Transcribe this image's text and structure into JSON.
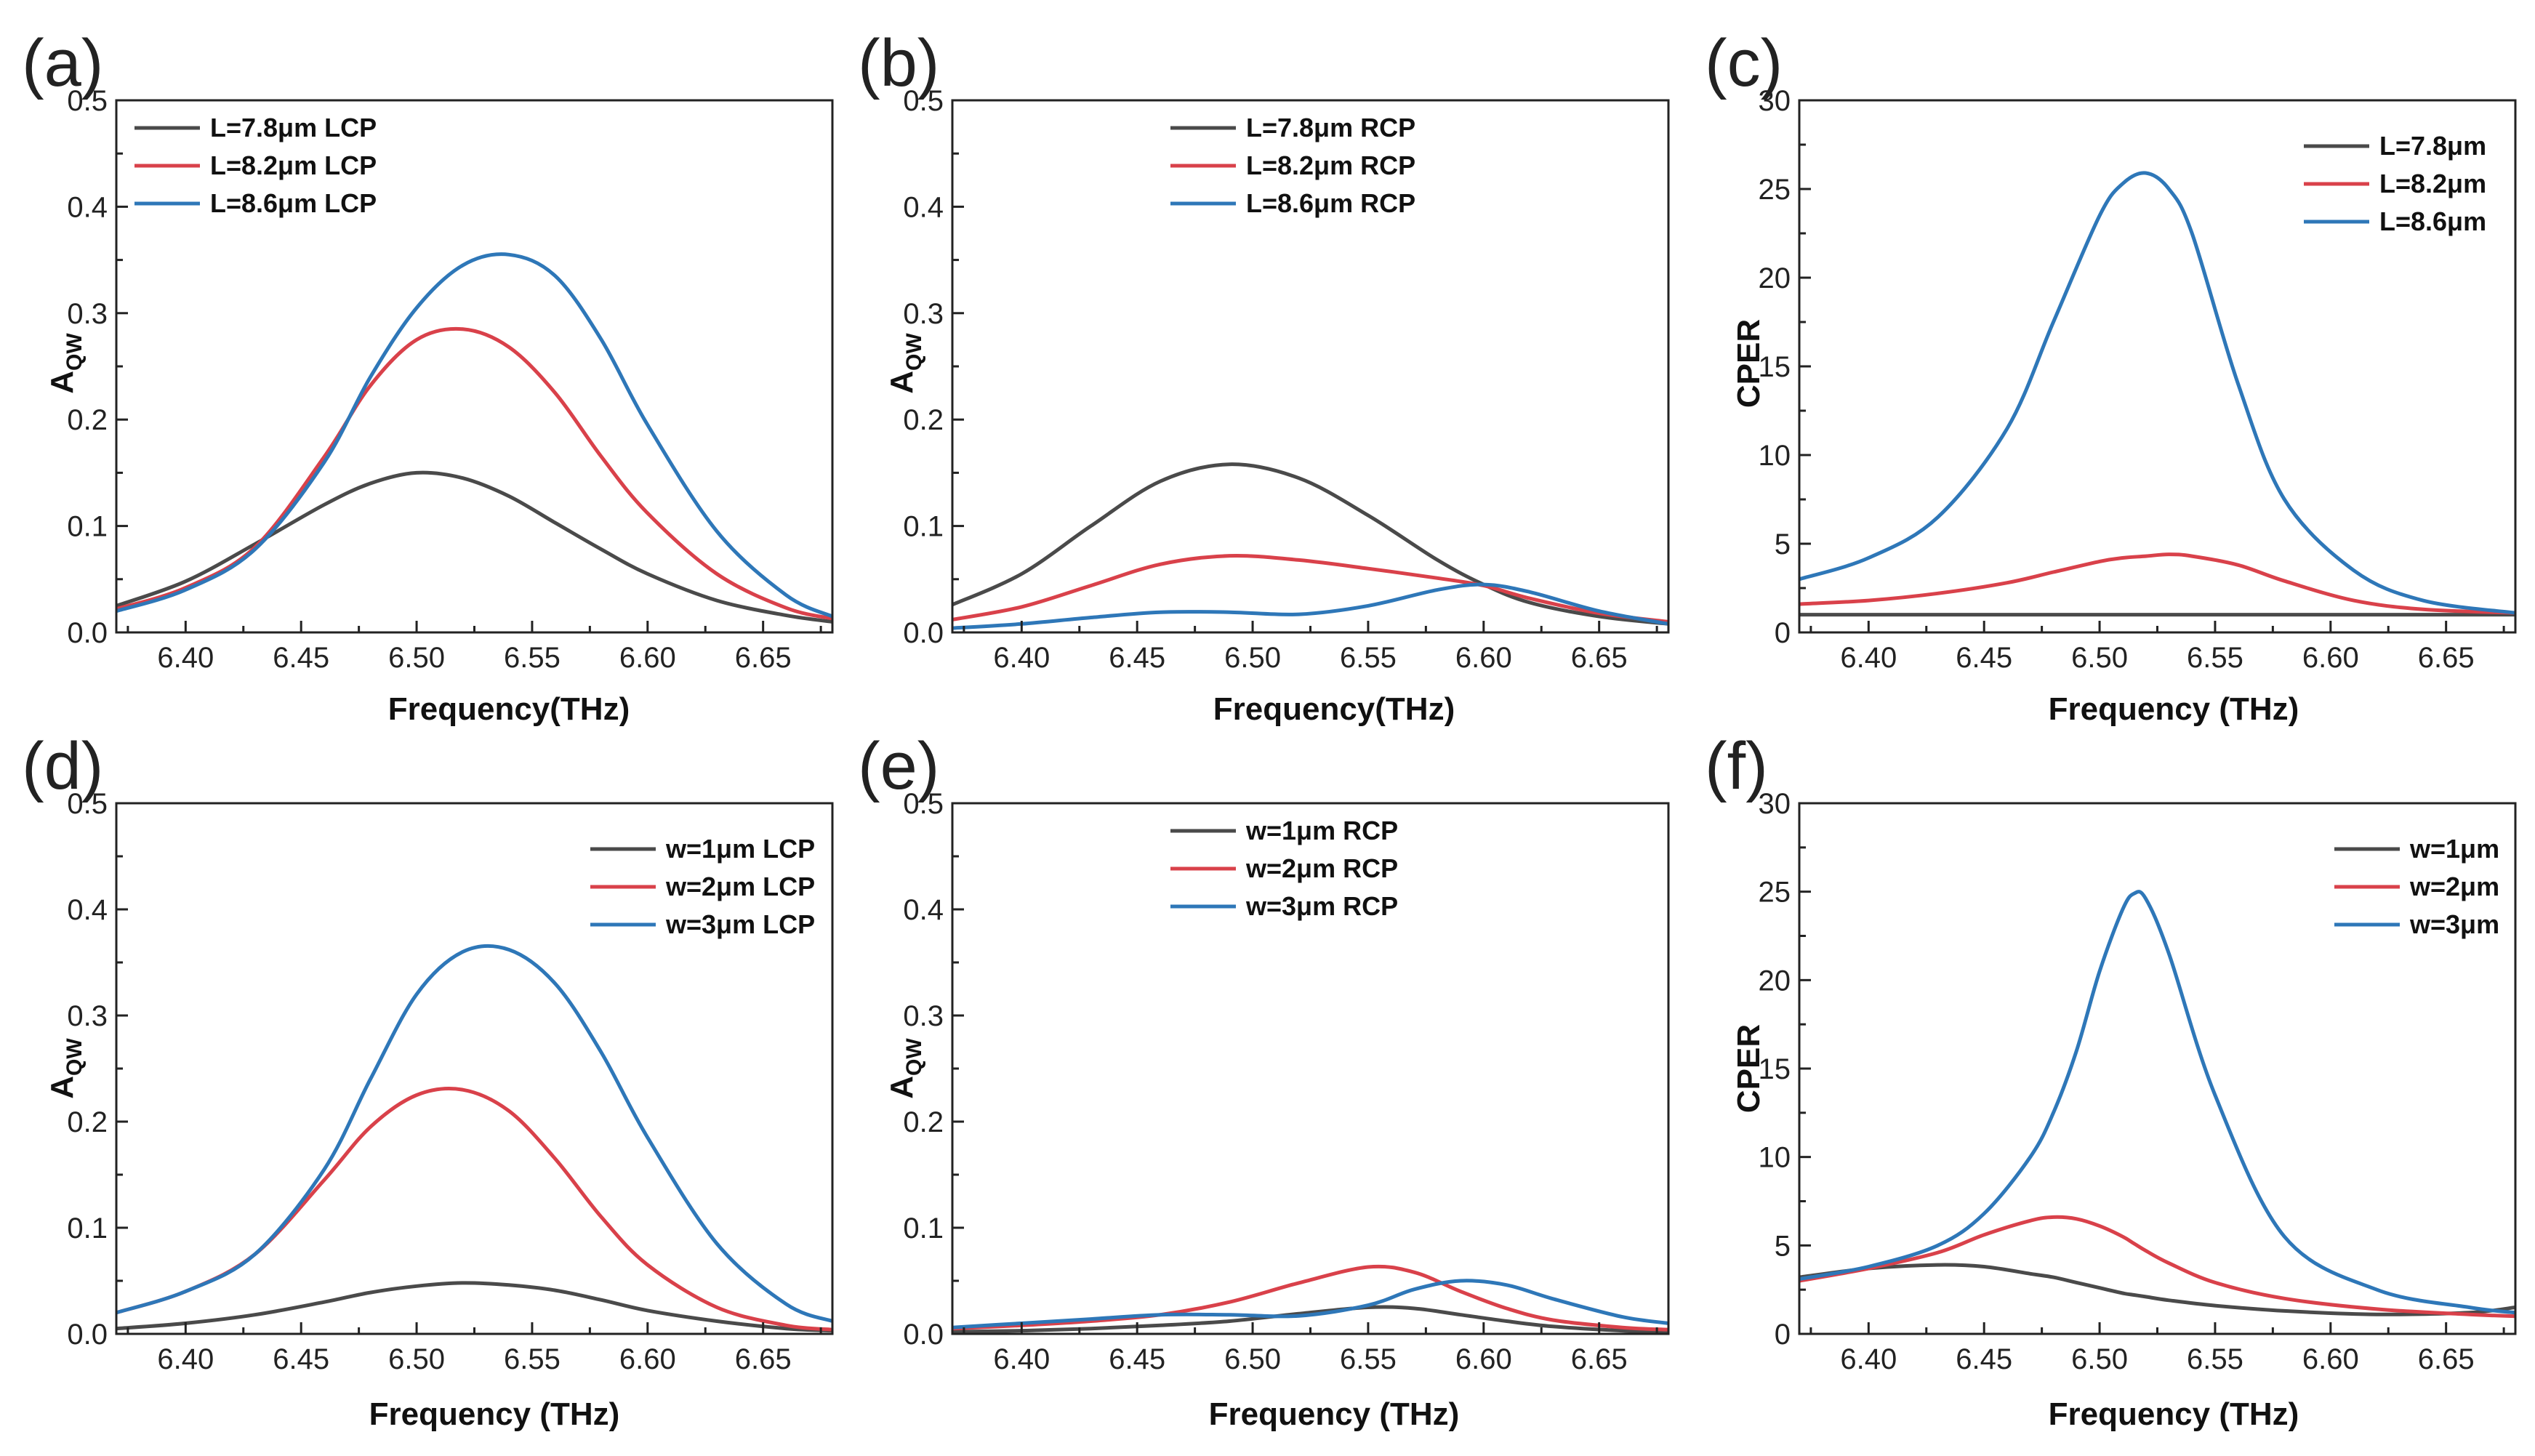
{
  "colors": {
    "black": "#4a4a4a",
    "red": "#d9414a",
    "blue": "#2e77b8"
  },
  "chart_data": [
    {
      "panel": "(a)",
      "type": "line",
      "xlabel": "Frequency(THz)",
      "ylabel": "A",
      "ylabel_sub": "QW",
      "xlim": [
        6.37,
        6.68
      ],
      "ylim": [
        0,
        0.5
      ],
      "xticks": [
        "6.40",
        "6.45",
        "6.50",
        "6.55",
        "6.60",
        "6.65"
      ],
      "yticks": [
        "0.0",
        "0.1",
        "0.2",
        "0.3",
        "0.4",
        "0.5"
      ],
      "legend": "top-left",
      "x": [
        6.37,
        6.4,
        6.43,
        6.46,
        6.48,
        6.5,
        6.52,
        6.54,
        6.56,
        6.58,
        6.6,
        6.63,
        6.66,
        6.68
      ],
      "series": [
        {
          "name": "L=7.8μm LCP",
          "color": "black",
          "values": [
            0.025,
            0.048,
            0.083,
            0.12,
            0.14,
            0.15,
            0.145,
            0.128,
            0.103,
            0.078,
            0.055,
            0.03,
            0.016,
            0.01
          ]
        },
        {
          "name": "L=8.2μm LCP",
          "color": "red",
          "values": [
            0.022,
            0.042,
            0.08,
            0.165,
            0.232,
            0.275,
            0.285,
            0.268,
            0.225,
            0.165,
            0.112,
            0.055,
            0.023,
            0.013
          ]
        },
        {
          "name": "L=8.6μm LCP",
          "color": "blue",
          "values": [
            0.02,
            0.04,
            0.078,
            0.16,
            0.24,
            0.305,
            0.345,
            0.355,
            0.335,
            0.275,
            0.195,
            0.095,
            0.035,
            0.015
          ]
        }
      ]
    },
    {
      "panel": "(b)",
      "type": "line",
      "xlabel": "Frequency(THz)",
      "ylabel": "A",
      "ylabel_sub": "QW",
      "xlim": [
        6.37,
        6.68
      ],
      "ylim": [
        0,
        0.5
      ],
      "xticks": [
        "6.40",
        "6.45",
        "6.50",
        "6.55",
        "6.60",
        "6.65"
      ],
      "yticks": [
        "0.0",
        "0.1",
        "0.2",
        "0.3",
        "0.4",
        "0.5"
      ],
      "legend": "top-center",
      "x": [
        6.37,
        6.4,
        6.43,
        6.46,
        6.49,
        6.52,
        6.55,
        6.58,
        6.6,
        6.62,
        6.65,
        6.68
      ],
      "series": [
        {
          "name": "L=7.8μm RCP",
          "color": "black",
          "values": [
            0.026,
            0.055,
            0.1,
            0.142,
            0.158,
            0.145,
            0.11,
            0.068,
            0.045,
            0.028,
            0.015,
            0.008
          ]
        },
        {
          "name": "L=8.2μm RCP",
          "color": "red",
          "values": [
            0.012,
            0.024,
            0.044,
            0.064,
            0.072,
            0.068,
            0.06,
            0.051,
            0.044,
            0.032,
            0.018,
            0.01
          ]
        },
        {
          "name": "L=8.6μm RCP",
          "color": "blue",
          "values": [
            0.004,
            0.008,
            0.014,
            0.019,
            0.019,
            0.017,
            0.025,
            0.04,
            0.045,
            0.038,
            0.02,
            0.008
          ]
        }
      ]
    },
    {
      "panel": "(c)",
      "type": "line",
      "xlabel": "Frequency (THz)",
      "ylabel": "CPER",
      "ylabel_sub": "",
      "xlim": [
        6.37,
        6.68
      ],
      "ylim": [
        0,
        30
      ],
      "xticks": [
        "6.40",
        "6.45",
        "6.50",
        "6.55",
        "6.60",
        "6.65"
      ],
      "yticks": [
        "0",
        "5",
        "10",
        "15",
        "20",
        "25",
        "30"
      ],
      "legend": "top-right",
      "x": [
        6.37,
        6.4,
        6.43,
        6.46,
        6.48,
        6.5,
        6.51,
        6.52,
        6.53,
        6.54,
        6.56,
        6.58,
        6.61,
        6.64,
        6.68
      ],
      "series": [
        {
          "name": "L=7.8μm",
          "color": "black",
          "values": [
            1.0,
            1.0,
            1.0,
            1.0,
            1.0,
            1.0,
            1.0,
            1.0,
            1.0,
            1.0,
            1.0,
            1.0,
            1.0,
            1.0,
            1.0
          ]
        },
        {
          "name": "L=8.2μm",
          "color": "red",
          "values": [
            1.6,
            1.8,
            2.2,
            2.8,
            3.4,
            4.0,
            4.2,
            4.3,
            4.4,
            4.3,
            3.8,
            2.9,
            1.8,
            1.3,
            1.1
          ]
        },
        {
          "name": "L=8.6μm",
          "color": "blue",
          "values": [
            3.0,
            4.2,
            6.5,
            11.5,
            17.5,
            23.5,
            25.3,
            25.9,
            25.0,
            22.5,
            14.0,
            7.5,
            3.5,
            1.8,
            1.1
          ]
        }
      ]
    },
    {
      "panel": "(d)",
      "type": "line",
      "xlabel": "Frequency (THz)",
      "ylabel": "A",
      "ylabel_sub": "QW",
      "xlim": [
        6.37,
        6.68
      ],
      "ylim": [
        0,
        0.5
      ],
      "xticks": [
        "6.40",
        "6.45",
        "6.50",
        "6.55",
        "6.60",
        "6.65"
      ],
      "yticks": [
        "0.0",
        "0.1",
        "0.2",
        "0.3",
        "0.4",
        "0.5"
      ],
      "legend": "top-right",
      "x": [
        6.37,
        6.4,
        6.43,
        6.46,
        6.48,
        6.5,
        6.52,
        6.54,
        6.56,
        6.58,
        6.6,
        6.63,
        6.66,
        6.68
      ],
      "series": [
        {
          "name": "w=1μm LCP",
          "color": "black",
          "values": [
            0.005,
            0.01,
            0.018,
            0.03,
            0.039,
            0.045,
            0.048,
            0.046,
            0.041,
            0.032,
            0.022,
            0.012,
            0.005,
            0.003
          ]
        },
        {
          "name": "w=2μm LCP",
          "color": "red",
          "values": [
            0.02,
            0.04,
            0.075,
            0.145,
            0.195,
            0.225,
            0.23,
            0.21,
            0.165,
            0.11,
            0.065,
            0.025,
            0.008,
            0.004
          ]
        },
        {
          "name": "w=3μm LCP",
          "color": "blue",
          "values": [
            0.02,
            0.04,
            0.075,
            0.155,
            0.24,
            0.32,
            0.36,
            0.362,
            0.33,
            0.265,
            0.185,
            0.085,
            0.028,
            0.012
          ]
        }
      ]
    },
    {
      "panel": "(e)",
      "type": "line",
      "xlabel": "Frequency (THz)",
      "ylabel": "A",
      "ylabel_sub": "QW",
      "xlim": [
        6.37,
        6.68
      ],
      "ylim": [
        0,
        0.5
      ],
      "xticks": [
        "6.40",
        "6.45",
        "6.50",
        "6.55",
        "6.60",
        "6.65"
      ],
      "yticks": [
        "0.0",
        "0.1",
        "0.2",
        "0.3",
        "0.4",
        "0.5"
      ],
      "legend": "top-center",
      "x": [
        6.37,
        6.4,
        6.43,
        6.46,
        6.49,
        6.52,
        6.55,
        6.57,
        6.59,
        6.61,
        6.63,
        6.66,
        6.68
      ],
      "series": [
        {
          "name": "w=1μm RCP",
          "color": "black",
          "values": [
            0.002,
            0.003,
            0.005,
            0.008,
            0.012,
            0.019,
            0.025,
            0.024,
            0.018,
            0.012,
            0.007,
            0.003,
            0.002
          ]
        },
        {
          "name": "w=2μm RCP",
          "color": "red",
          "values": [
            0.005,
            0.008,
            0.012,
            0.018,
            0.03,
            0.048,
            0.063,
            0.058,
            0.04,
            0.024,
            0.013,
            0.006,
            0.004
          ]
        },
        {
          "name": "w=3μm RCP",
          "color": "blue",
          "values": [
            0.006,
            0.01,
            0.014,
            0.018,
            0.018,
            0.017,
            0.027,
            0.042,
            0.05,
            0.046,
            0.033,
            0.016,
            0.01
          ]
        }
      ]
    },
    {
      "panel": "(f)",
      "type": "line",
      "xlabel": "Frequency (THz)",
      "ylabel": "CPER",
      "ylabel_sub": "",
      "xlim": [
        6.37,
        6.68
      ],
      "ylim": [
        0,
        30
      ],
      "xticks": [
        "6.40",
        "6.45",
        "6.50",
        "6.55",
        "6.60",
        "6.65"
      ],
      "yticks": [
        "0",
        "5",
        "10",
        "15",
        "20",
        "25",
        "30"
      ],
      "legend": "top-right",
      "x": [
        6.37,
        6.4,
        6.43,
        6.45,
        6.47,
        6.48,
        6.49,
        6.5,
        6.51,
        6.515,
        6.52,
        6.53,
        6.55,
        6.58,
        6.62,
        6.66,
        6.68
      ],
      "series": [
        {
          "name": "w=1μm",
          "color": "black",
          "values": [
            3.2,
            3.7,
            3.9,
            3.8,
            3.4,
            3.2,
            2.9,
            2.6,
            2.3,
            2.2,
            2.1,
            1.9,
            1.6,
            1.3,
            1.1,
            1.2,
            1.5
          ]
        },
        {
          "name": "w=2μm",
          "color": "red",
          "values": [
            3.0,
            3.7,
            4.6,
            5.6,
            6.4,
            6.6,
            6.5,
            6.1,
            5.5,
            5.1,
            4.7,
            4.0,
            2.9,
            2.0,
            1.4,
            1.1,
            1.0
          ]
        },
        {
          "name": "w=3μm",
          "color": "blue",
          "values": [
            3.1,
            3.8,
            5.0,
            6.8,
            10.0,
            12.5,
            16.0,
            20.5,
            24.0,
            24.9,
            24.6,
            21.5,
            13.5,
            5.5,
            2.5,
            1.5,
            1.2
          ]
        }
      ]
    }
  ]
}
